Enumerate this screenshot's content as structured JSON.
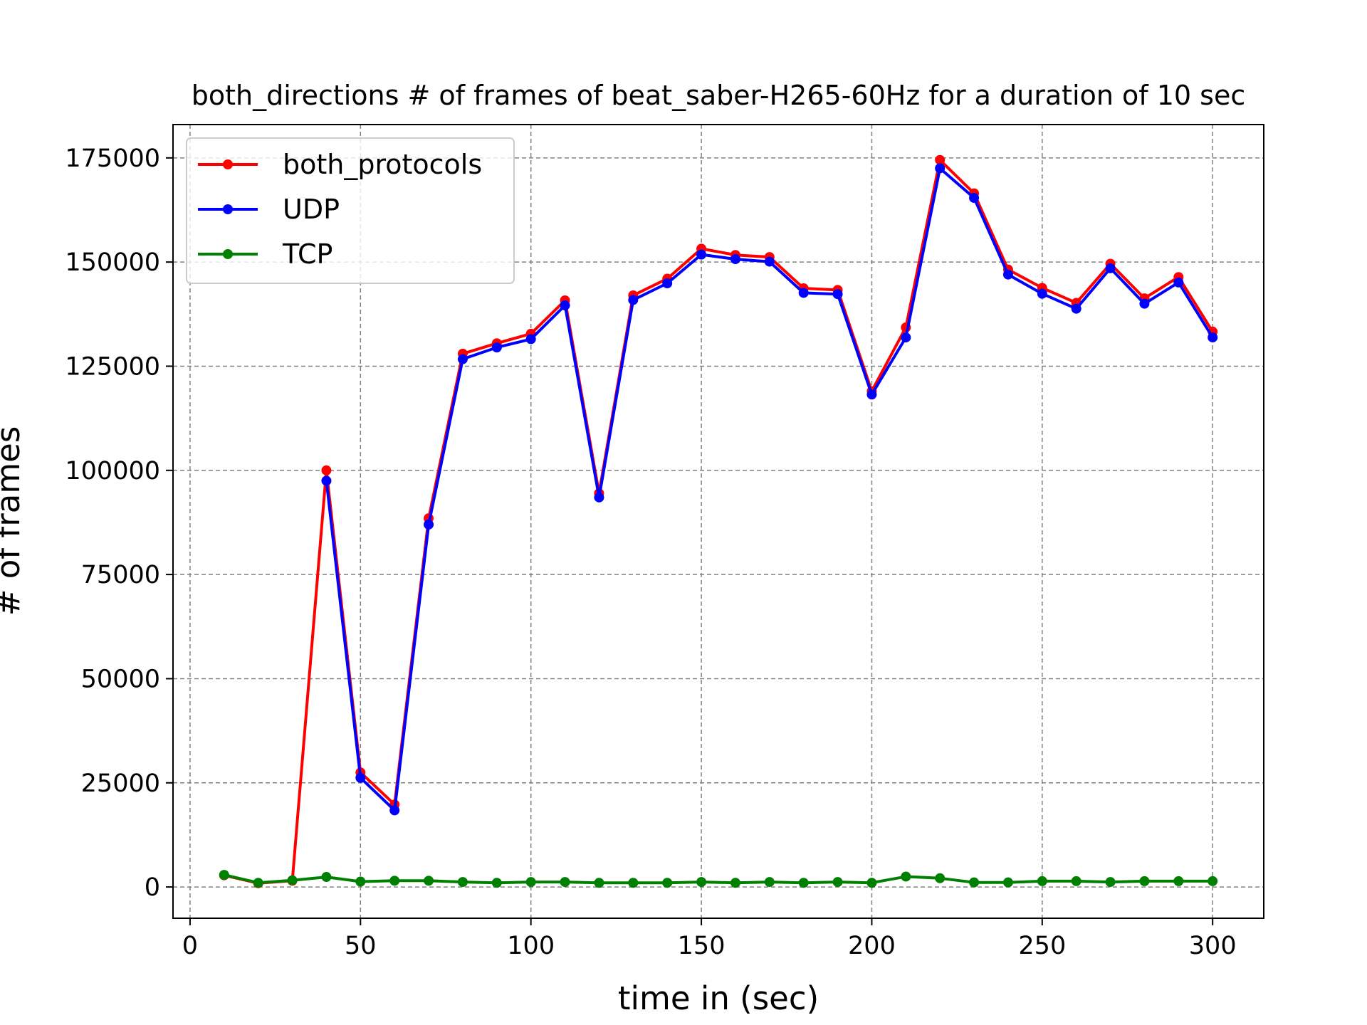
{
  "chart_data": {
    "type": "line",
    "title": "both_directions # of frames of beat_saber-H265-60Hz for a duration of 10 sec",
    "xlabel": "time in (sec)",
    "ylabel": "# of frames",
    "xlim": [
      -5,
      315
    ],
    "ylim": [
      -7500,
      183000
    ],
    "xticks": [
      0,
      50,
      100,
      150,
      200,
      250,
      300
    ],
    "yticks": [
      0,
      25000,
      50000,
      75000,
      100000,
      125000,
      150000,
      175000
    ],
    "grid": true,
    "legend_position": "upper-left",
    "series": [
      {
        "name": "both_protocols",
        "color": "#ff0000",
        "x": [
          10,
          20,
          30,
          40,
          50,
          60,
          70,
          80,
          90,
          100,
          110,
          120,
          130,
          140,
          150,
          160,
          170,
          180,
          190,
          200,
          210,
          220,
          230,
          240,
          250,
          260,
          270,
          280,
          290,
          300
        ],
        "y": [
          2800,
          900,
          1500,
          100000,
          27500,
          19800,
          88500,
          128000,
          130500,
          132800,
          140800,
          94500,
          142000,
          146000,
          153200,
          151700,
          151200,
          143700,
          143300,
          119000,
          134300,
          174500,
          166500,
          148200,
          143800,
          140200,
          149600,
          141300,
          146400,
          133300
        ]
      },
      {
        "name": "UDP",
        "color": "#0000ff",
        "x": [
          40,
          50,
          60,
          70,
          80,
          90,
          100,
          110,
          120,
          130,
          140,
          150,
          160,
          170,
          180,
          190,
          200,
          210,
          220,
          230,
          240,
          250,
          260,
          270,
          280,
          290,
          300
        ],
        "y": [
          97500,
          26200,
          18400,
          87000,
          126700,
          129500,
          131500,
          139600,
          93500,
          140900,
          144900,
          151800,
          150700,
          150100,
          142600,
          142300,
          118200,
          131900,
          172500,
          165400,
          147000,
          142400,
          138800,
          148500,
          140000,
          145100,
          131900
        ]
      },
      {
        "name": "TCP",
        "color": "#008000",
        "x": [
          10,
          20,
          30,
          40,
          50,
          60,
          70,
          80,
          90,
          100,
          110,
          120,
          130,
          140,
          150,
          160,
          170,
          180,
          190,
          200,
          210,
          220,
          230,
          240,
          250,
          260,
          270,
          280,
          290,
          300
        ],
        "y": [
          2900,
          1000,
          1600,
          2400,
          1300,
          1500,
          1500,
          1200,
          1000,
          1200,
          1200,
          1000,
          1000,
          1000,
          1200,
          1000,
          1200,
          1000,
          1200,
          1000,
          2500,
          2100,
          1100,
          1100,
          1400,
          1400,
          1200,
          1400,
          1400,
          1400
        ]
      }
    ]
  }
}
